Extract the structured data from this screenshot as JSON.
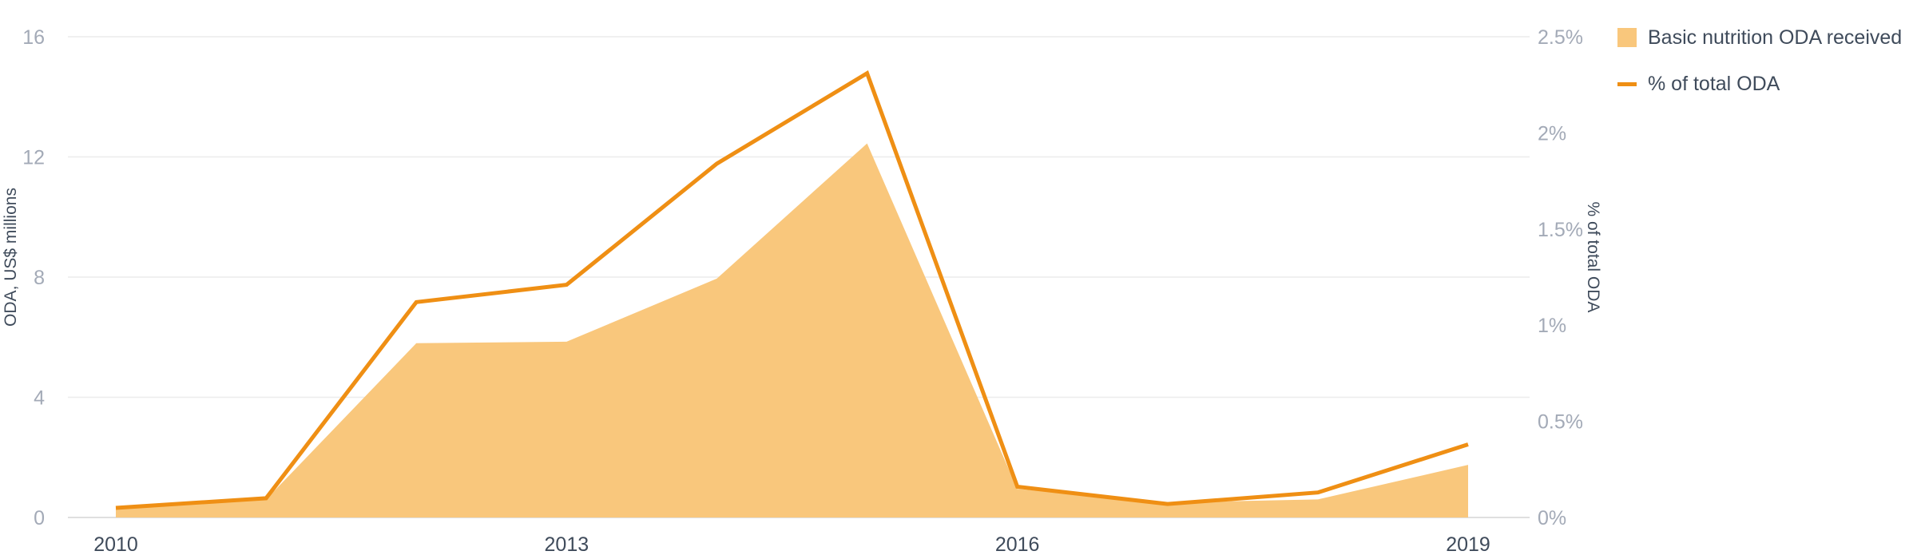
{
  "chart_data": {
    "type": "area",
    "x": [
      2010,
      2011,
      2012,
      2013,
      2014,
      2015,
      2016,
      2017,
      2018,
      2019
    ],
    "x_tick_labels": [
      "2010",
      "2013",
      "2016",
      "2019"
    ],
    "series": [
      {
        "name": "Basic nutrition ODA received",
        "type": "area",
        "axis": "left",
        "color": "#f9c77c",
        "values": [
          0.3,
          0.6,
          5.8,
          5.85,
          7.95,
          12.45,
          0.95,
          0.5,
          0.6,
          1.75
        ]
      },
      {
        "name": "% of total ODA",
        "type": "line",
        "axis": "right",
        "color": "#ef8f14",
        "values": [
          0.05,
          0.1,
          1.12,
          1.21,
          1.84,
          2.31,
          0.16,
          0.07,
          0.13,
          0.38
        ]
      }
    ],
    "y_left": {
      "label": "ODA, US$ millions",
      "range": [
        0,
        16
      ],
      "ticks": [
        0,
        4,
        8,
        12,
        16
      ],
      "tick_labels": [
        "0",
        "4",
        "8",
        "12",
        "16"
      ]
    },
    "y_right": {
      "label": "% of total ODA",
      "range": [
        0,
        2.5
      ],
      "ticks": [
        0,
        0.5,
        1,
        1.5,
        2,
        2.5
      ],
      "tick_labels": [
        "0%",
        "0.5%",
        "1%",
        "1.5%",
        "2%",
        "2.5%"
      ]
    },
    "grid": true,
    "legend_position": "top-right"
  }
}
